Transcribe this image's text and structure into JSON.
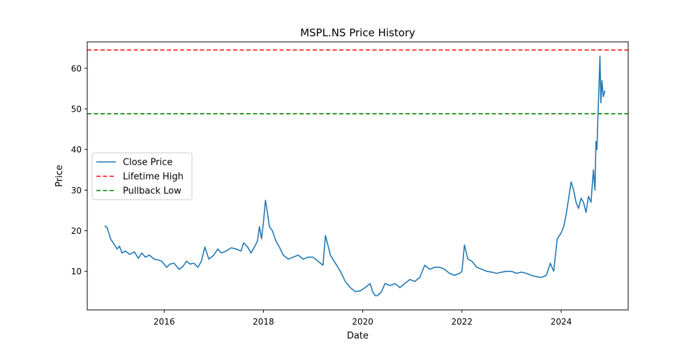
{
  "chart_data": {
    "type": "line",
    "title": "MSPL.NS Price History",
    "xlabel": "Date",
    "ylabel": "Price",
    "xlim": [
      2014.45,
      2025.35
    ],
    "ylim": [
      0.5,
      66.5
    ],
    "x_ticks": [
      2016,
      2018,
      2020,
      2022,
      2024
    ],
    "y_ticks": [
      10,
      20,
      30,
      40,
      50,
      60
    ],
    "grid": false,
    "legend_position": "center-left",
    "series": [
      {
        "name": "Close Price",
        "color": "#1f77b4",
        "style": "solid",
        "x": [
          2014.8,
          2014.85,
          2014.92,
          2015.0,
          2015.05,
          2015.1,
          2015.15,
          2015.22,
          2015.3,
          2015.4,
          2015.48,
          2015.55,
          2015.62,
          2015.7,
          2015.8,
          2015.88,
          2015.95,
          2016.05,
          2016.12,
          2016.2,
          2016.3,
          2016.38,
          2016.45,
          2016.52,
          2016.6,
          2016.68,
          2016.75,
          2016.82,
          2016.9,
          2017.0,
          2017.08,
          2017.15,
          2017.25,
          2017.35,
          2017.45,
          2017.55,
          2017.6,
          2017.68,
          2017.75,
          2017.82,
          2017.88,
          2017.92,
          2017.96,
          2018.0,
          2018.04,
          2018.08,
          2018.12,
          2018.18,
          2018.25,
          2018.32,
          2018.4,
          2018.5,
          2018.6,
          2018.7,
          2018.8,
          2018.9,
          2019.0,
          2019.1,
          2019.2,
          2019.25,
          2019.35,
          2019.45,
          2019.55,
          2019.65,
          2019.75,
          2019.85,
          2019.95,
          2020.05,
          2020.15,
          2020.2,
          2020.25,
          2020.3,
          2020.38,
          2020.45,
          2020.55,
          2020.65,
          2020.75,
          2020.85,
          2020.95,
          2021.05,
          2021.15,
          2021.25,
          2021.35,
          2021.45,
          2021.55,
          2021.65,
          2021.75,
          2021.85,
          2021.95,
          2022.0,
          2022.05,
          2022.12,
          2022.2,
          2022.3,
          2022.4,
          2022.5,
          2022.6,
          2022.7,
          2022.8,
          2022.9,
          2023.0,
          2023.1,
          2023.2,
          2023.3,
          2023.4,
          2023.5,
          2023.6,
          2023.7,
          2023.78,
          2023.85,
          2023.92,
          2024.0,
          2024.05,
          2024.1,
          2024.15,
          2024.2,
          2024.25,
          2024.3,
          2024.35,
          2024.4,
          2024.45,
          2024.5,
          2024.55,
          2024.6,
          2024.65,
          2024.68,
          2024.7,
          2024.72,
          2024.74,
          2024.76,
          2024.78,
          2024.8,
          2024.82,
          2024.85,
          2024.88
        ],
        "y": [
          21.2,
          20.8,
          18.0,
          16.5,
          15.5,
          16.2,
          14.5,
          15.0,
          14.2,
          14.8,
          13.2,
          14.5,
          13.5,
          14.0,
          13.0,
          12.8,
          12.5,
          11.0,
          11.8,
          12.0,
          10.5,
          11.2,
          12.5,
          11.8,
          12.0,
          11.0,
          12.5,
          16.0,
          13.0,
          14.0,
          15.5,
          14.5,
          15.0,
          15.8,
          15.5,
          15.0,
          17.0,
          16.0,
          14.5,
          16.0,
          17.5,
          21.0,
          18.0,
          22.0,
          27.5,
          24.5,
          21.0,
          20.0,
          17.5,
          16.0,
          14.0,
          13.0,
          13.5,
          14.0,
          13.0,
          13.5,
          13.5,
          12.5,
          11.5,
          18.8,
          14.0,
          12.0,
          10.0,
          7.5,
          6.0,
          5.0,
          5.2,
          6.0,
          7.0,
          5.0,
          4.0,
          4.0,
          5.0,
          7.0,
          6.5,
          7.0,
          6.0,
          7.0,
          8.0,
          7.5,
          8.5,
          11.5,
          10.5,
          11.0,
          11.0,
          10.5,
          9.5,
          9.0,
          9.5,
          10.0,
          16.5,
          13.0,
          12.5,
          11.0,
          10.5,
          10.0,
          9.8,
          9.5,
          9.8,
          10.0,
          10.0,
          9.5,
          9.8,
          9.5,
          9.0,
          8.7,
          8.5,
          9.0,
          12.0,
          10.0,
          18.0,
          19.5,
          21.0,
          24.0,
          28.0,
          32.0,
          30.0,
          27.0,
          25.5,
          28.0,
          27.0,
          24.5,
          28.5,
          27.0,
          35.0,
          30.0,
          42.0,
          40.0,
          48.0,
          55.0,
          63.0,
          51.5,
          57.0,
          53.0,
          54.5
        ]
      },
      {
        "name": "Lifetime High",
        "color": "#ff0000",
        "style": "dashed",
        "value": 64.5
      },
      {
        "name": "Pullback Low",
        "color": "#008000",
        "style": "dashed",
        "value": 48.8
      }
    ]
  }
}
